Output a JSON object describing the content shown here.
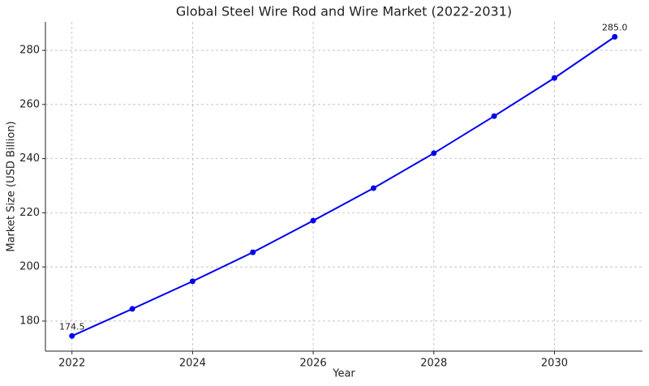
{
  "chart_data": {
    "type": "line",
    "title": "Global Steel Wire Rod and Wire Market (2022-2031)",
    "x_label": "Year",
    "y_label": "Market Size (USD Billion)",
    "x": [
      2022,
      2023,
      2024,
      2025,
      2026,
      2027,
      2028,
      2029,
      2030,
      2031
    ],
    "series": [
      {
        "color": "#0000ee",
        "values": [
          174.5,
          184.5,
          194.7,
          205.4,
          217.1,
          229.1,
          242.0,
          255.7,
          269.8,
          285.0
        ],
        "value_labels": [
          "174.5",
          null,
          null,
          null,
          null,
          null,
          null,
          null,
          null,
          "285.0"
        ]
      }
    ],
    "xlim": [
      2021.56,
      2031.46
    ],
    "xticks": [
      2022,
      2024,
      2026,
      2028,
      2030
    ],
    "ylim": [
      168.9,
      290.5
    ],
    "yticks": [
      180,
      200,
      220,
      240,
      260,
      280
    ],
    "grid": true
  }
}
